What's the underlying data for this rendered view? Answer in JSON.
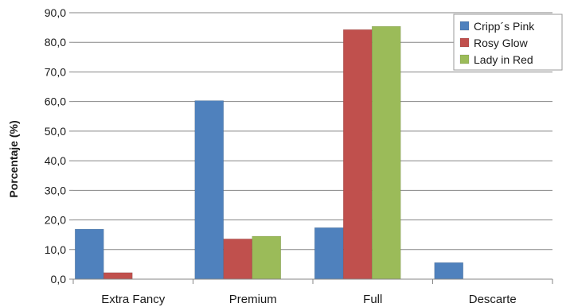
{
  "chart_data": {
    "type": "bar",
    "categories": [
      "Extra Fancy",
      "Premium",
      "Full",
      "Descarte"
    ],
    "series": [
      {
        "name": "Cripp´s Pink",
        "color": "#4F81BD",
        "values": [
          16.9,
          60.3,
          17.4,
          5.6
        ]
      },
      {
        "name": "Rosy Glow",
        "color": "#C0504D",
        "values": [
          2.2,
          13.6,
          84.3,
          0
        ]
      },
      {
        "name": "Lady in Red",
        "color": "#9BBB59",
        "values": [
          0,
          14.5,
          85.4,
          0
        ]
      }
    ],
    "ylabel": "Porcentaje (%)",
    "ylim": [
      0,
      90
    ],
    "yticks": [
      "0,0",
      "10,0",
      "20,0",
      "30,0",
      "40,0",
      "50,0",
      "60,0",
      "70,0",
      "80,0",
      "90,0"
    ],
    "grid": true,
    "legend_position": "top-right"
  }
}
